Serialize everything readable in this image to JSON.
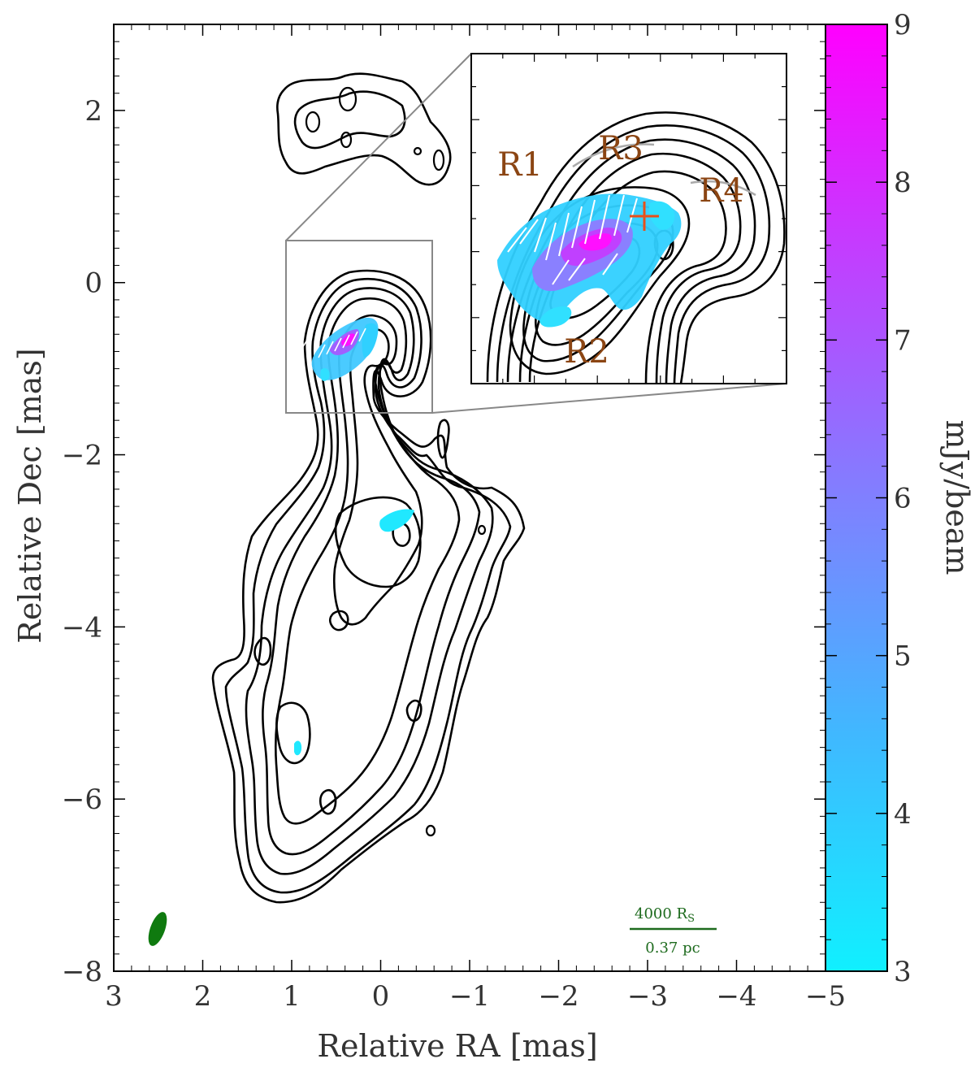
{
  "chart_data": {
    "type": "heatmap",
    "description_source": "VLBI radio map: total intensity contours with polarized intensity colour overlay",
    "xlabel": "Relative RA [mas]",
    "ylabel": "Relative Dec [mas]",
    "xlim": [
      3,
      -5
    ],
    "ylim": [
      -8,
      3
    ],
    "xticks": [
      3,
      2,
      1,
      0,
      -1,
      -2,
      -3,
      -4,
      -5
    ],
    "xtick_labels": [
      "3",
      "2",
      "1",
      "0",
      "−1",
      "−2",
      "−3",
      "−4",
      "−5"
    ],
    "yticks": [
      2,
      0,
      -2,
      -4,
      -6,
      -8
    ],
    "ytick_labels": [
      "2",
      "0",
      "−2",
      "−4",
      "−6",
      "−8"
    ],
    "colorbar": {
      "label": "mJy/beam",
      "range": [
        3,
        9
      ],
      "ticks": [
        3,
        4,
        5,
        6,
        7,
        8,
        9
      ],
      "tick_labels": [
        "3",
        "4",
        "5",
        "6",
        "7",
        "8",
        "9"
      ],
      "colors": [
        "#10f0ff",
        "#40b8ff",
        "#8080ff",
        "#c040ff",
        "#ff00ff"
      ]
    },
    "inset": {
      "zoom_box_ra": [
        1,
        -0.7
      ],
      "zoom_box_dec": [
        0.5,
        -1.5
      ],
      "labels": [
        "R1",
        "R2",
        "R3",
        "R4"
      ]
    },
    "scale_bar": {
      "top": "4000 R",
      "top_sub": "S",
      "bottom": "0.37 pc"
    },
    "beam_color": "#0f7a0f",
    "region_label_color": "#8B4513",
    "marker_color": "#e8501a"
  }
}
